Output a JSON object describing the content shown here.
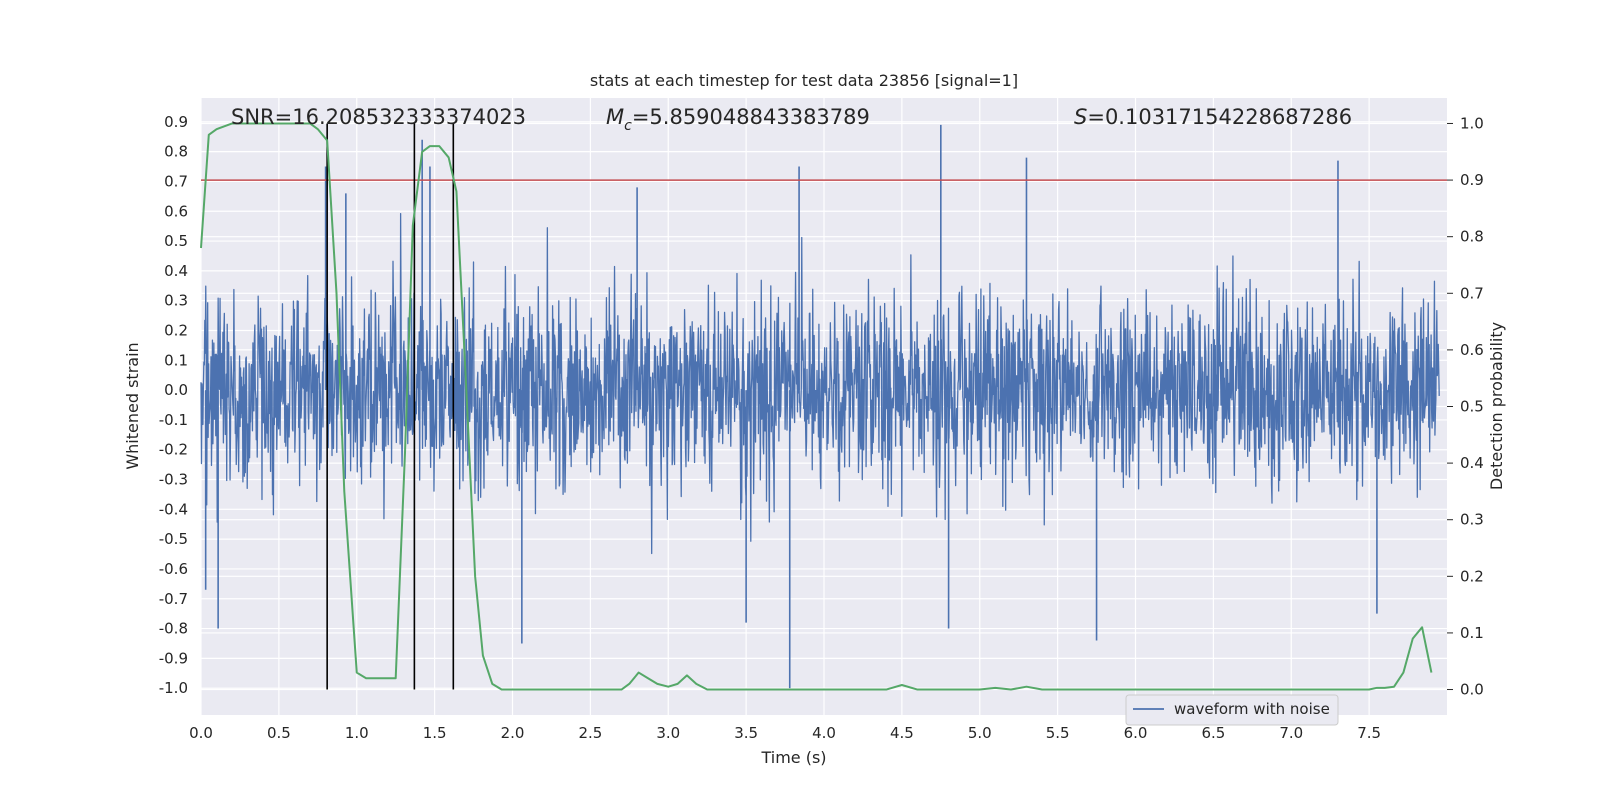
{
  "chart_data": {
    "type": "line",
    "title": "stats at each timestep for test data 23856 [signal=1]",
    "xlabel": "Time (s)",
    "ylabel": "Whitened strain",
    "y2label": "Detection probability",
    "xlim": [
      0.0,
      8.0
    ],
    "ylim": [
      -1.09,
      0.98
    ],
    "y2lim": [
      -0.045,
      1.045
    ],
    "xticks": [
      "0.0",
      "0.5",
      "1.0",
      "1.5",
      "2.0",
      "2.5",
      "3.0",
      "3.5",
      "4.0",
      "4.5",
      "5.0",
      "5.5",
      "6.0",
      "6.5",
      "7.0",
      "7.5"
    ],
    "yticks": [
      "0.9",
      "0.8",
      "0.7",
      "0.6",
      "0.5",
      "0.4",
      "0.3",
      "0.2",
      "0.1",
      "0.0",
      "-0.1",
      "-0.2",
      "-0.3",
      "-0.4",
      "-0.5",
      "-0.6",
      "-0.7",
      "-0.8",
      "-0.9",
      "-1.0"
    ],
    "y2ticks": [
      "1.0",
      "0.9",
      "0.8",
      "0.7",
      "0.6",
      "0.5",
      "0.4",
      "0.3",
      "0.2",
      "0.1",
      "0.0"
    ],
    "grid": true,
    "legend_placement": "lower-right",
    "annotations": {
      "snr": "SNR=16.208532333374023",
      "mc_symbol": "M",
      "mc_sub": "c",
      "mc_value": "=5.859048843383789",
      "s_symbol": "S",
      "s_value": "=0.10317154228687286"
    },
    "threshold": {
      "axis": "y2",
      "value": 0.9,
      "color": "#c44e52"
    },
    "vlines": [
      0.81,
      1.37,
      1.62
    ],
    "series": [
      {
        "name": "waveform with noise",
        "axis": "y",
        "color": "#4c72b0",
        "kind": "noise",
        "typical_range": [
          -0.4,
          0.45
        ],
        "spikes": [
          {
            "x": 0.11,
            "y": -0.8
          },
          {
            "x": 0.03,
            "y": -0.67
          },
          {
            "x": 0.8,
            "y": 0.75
          },
          {
            "x": 0.93,
            "y": 0.66
          },
          {
            "x": 1.42,
            "y": 0.84
          },
          {
            "x": 1.47,
            "y": 0.75
          },
          {
            "x": 2.06,
            "y": -0.85
          },
          {
            "x": 2.8,
            "y": 0.68
          },
          {
            "x": 3.84,
            "y": 0.75
          },
          {
            "x": 3.78,
            "y": -1.0
          },
          {
            "x": 4.75,
            "y": 0.89
          },
          {
            "x": 4.8,
            "y": -0.8
          },
          {
            "x": 5.3,
            "y": 0.78
          },
          {
            "x": 5.75,
            "y": -0.84
          },
          {
            "x": 7.3,
            "y": 0.77
          },
          {
            "x": 7.55,
            "y": -0.75
          },
          {
            "x": 3.5,
            "y": -0.78
          }
        ]
      },
      {
        "name": "",
        "axis": "y2",
        "color": "#55a868",
        "x": [
          0.0,
          0.05,
          0.1,
          0.2,
          0.3,
          0.4,
          0.5,
          0.6,
          0.7,
          0.75,
          0.81,
          0.87,
          0.92,
          1.0,
          1.06,
          1.12,
          1.19,
          1.25,
          1.31,
          1.36,
          1.42,
          1.47,
          1.53,
          1.59,
          1.64,
          1.7,
          1.76,
          1.81,
          1.87,
          1.93,
          2.0,
          2.1,
          2.2,
          2.3,
          2.4,
          2.5,
          2.6,
          2.7,
          2.75,
          2.81,
          2.87,
          2.93,
          3.0,
          3.06,
          3.12,
          3.18,
          3.25,
          3.31,
          3.4,
          3.5,
          3.6,
          3.7,
          3.8,
          3.9,
          4.0,
          4.1,
          4.2,
          4.3,
          4.4,
          4.5,
          4.6,
          4.7,
          4.8,
          4.9,
          5.0,
          5.1,
          5.2,
          5.3,
          5.4,
          5.5,
          5.6,
          5.7,
          5.8,
          5.9,
          6.0,
          6.1,
          6.2,
          6.3,
          6.4,
          6.5,
          6.6,
          6.7,
          6.8,
          6.9,
          7.0,
          7.1,
          7.2,
          7.3,
          7.4,
          7.5,
          7.55,
          7.6,
          7.66,
          7.72,
          7.78,
          7.84,
          7.9
        ],
        "y": [
          0.78,
          0.98,
          0.99,
          1.0,
          1.0,
          1.0,
          1.0,
          1.0,
          1.0,
          0.99,
          0.97,
          0.7,
          0.35,
          0.03,
          0.02,
          0.02,
          0.02,
          0.02,
          0.42,
          0.82,
          0.95,
          0.96,
          0.96,
          0.94,
          0.88,
          0.55,
          0.2,
          0.06,
          0.01,
          0.0,
          0.0,
          0.0,
          0.0,
          0.0,
          0.0,
          0.0,
          0.0,
          0.0,
          0.01,
          0.03,
          0.02,
          0.01,
          0.005,
          0.01,
          0.025,
          0.01,
          0.0,
          0.0,
          0.0,
          0.0,
          0.0,
          0.0,
          0.0,
          0.0,
          0.0,
          0.0,
          0.0,
          0.0,
          0.0,
          0.008,
          0.0,
          0.0,
          0.0,
          0.0,
          0.0,
          0.003,
          0.0,
          0.005,
          0.0,
          0.0,
          0.0,
          0.0,
          0.0,
          0.0,
          0.0,
          0.0,
          0.0,
          0.0,
          0.0,
          0.0,
          0.0,
          0.0,
          0.0,
          0.0,
          0.0,
          0.0,
          0.0,
          0.0,
          0.0,
          0.0,
          0.003,
          0.003,
          0.005,
          0.03,
          0.09,
          0.11,
          0.03
        ]
      }
    ]
  }
}
